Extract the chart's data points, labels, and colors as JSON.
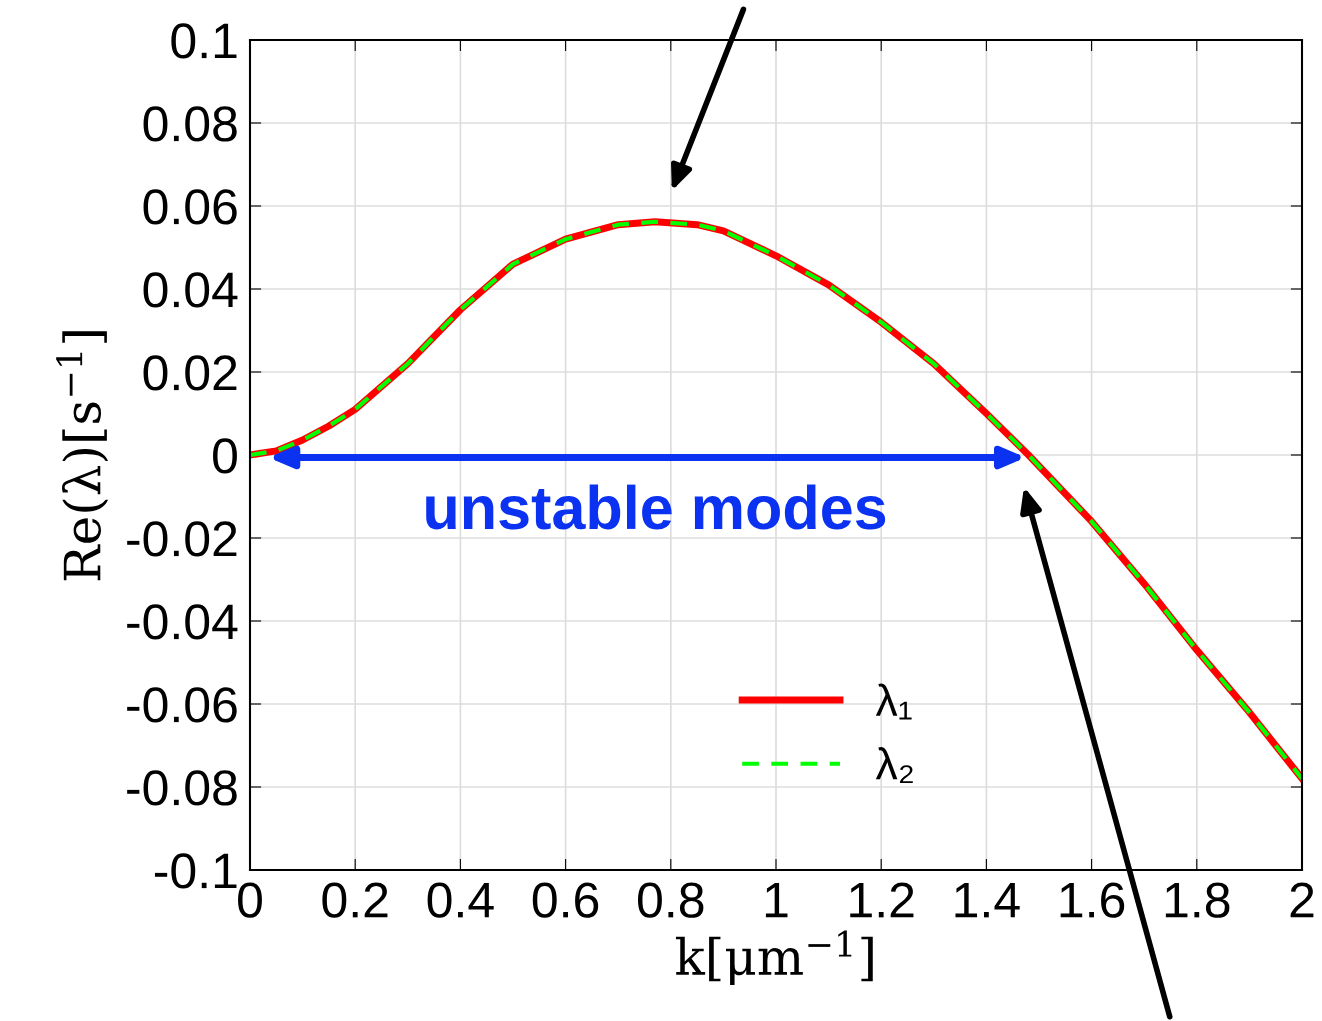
{
  "chart_data": {
    "type": "line",
    "xlabel": "k[μm$^{−1}$]",
    "ylabel": "Re(λ)[s$^{−1}$]",
    "x": [
      0,
      0.05,
      0.1,
      0.15,
      0.2,
      0.3,
      0.4,
      0.5,
      0.6,
      0.7,
      0.77,
      0.85,
      0.9,
      1.0,
      1.1,
      1.2,
      1.3,
      1.4,
      1.48,
      1.6,
      1.7,
      1.8,
      1.9,
      2.0
    ],
    "series": [
      {
        "name": "λ₁",
        "color": "#ff0000",
        "line_style": "solid",
        "values": [
          0,
          0.001,
          0.0036,
          0.007,
          0.011,
          0.022,
          0.035,
          0.046,
          0.052,
          0.0555,
          0.0562,
          0.0555,
          0.054,
          0.048,
          0.041,
          0.032,
          0.022,
          0.01,
          0,
          -0.016,
          -0.031,
          -0.047,
          -0.062,
          -0.078
        ]
      },
      {
        "name": "λ₂",
        "color": "#00ff00",
        "line_style": "dashed",
        "values": [
          0,
          0.001,
          0.0036,
          0.007,
          0.011,
          0.022,
          0.035,
          0.046,
          0.052,
          0.0555,
          0.0562,
          0.0555,
          0.054,
          0.048,
          0.041,
          0.032,
          0.022,
          0.01,
          0,
          -0.016,
          -0.031,
          -0.047,
          -0.062,
          -0.078
        ]
      }
    ],
    "annotations": [
      "unstable modes"
    ],
    "xlim": [
      0,
      2
    ],
    "xticks": [
      0,
      0.2,
      0.4,
      0.6,
      0.8,
      1,
      1.2,
      1.4,
      1.6,
      1.8,
      2
    ],
    "ylim": [
      -0.1,
      0.1
    ],
    "yticks": [
      -0.1,
      -0.08,
      -0.06,
      -0.04,
      -0.02,
      0,
      0.02,
      0.04,
      0.06,
      0.08,
      0.1
    ],
    "grid": true,
    "legend": "bottom",
    "marker": "none"
  }
}
